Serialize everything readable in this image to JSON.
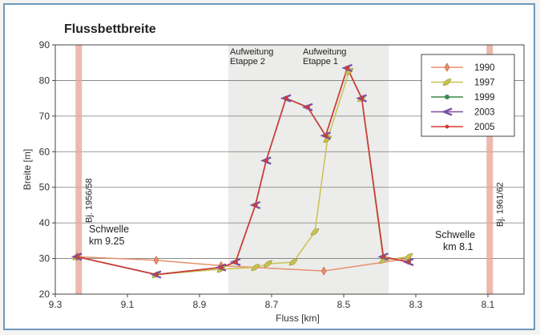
{
  "chart_data": {
    "type": "line",
    "title": "Flussbettbreite",
    "xlabel": "Fluss [km]",
    "ylabel": "Breite [m]",
    "xlim": [
      9.3,
      8.0
    ],
    "ylim": [
      20,
      90
    ],
    "xticks": [
      "9.3",
      "9.1",
      "8.9",
      "8.7",
      "8.5",
      "8.3",
      "8.1"
    ],
    "yticks": [
      "20",
      "30",
      "40",
      "50",
      "60",
      "70",
      "80",
      "90"
    ],
    "grid": "horizontal",
    "legend_position": "top-right",
    "series": [
      {
        "name": "1990",
        "color": "#e8906e",
        "marker": "diamond",
        "x": [
          9.24,
          9.02,
          8.84,
          8.555,
          8.32
        ],
        "y": [
          30.5,
          29.5,
          28.0,
          26.5,
          30.0
        ]
      },
      {
        "name": "1997",
        "color": "#c8c252",
        "marker": "leaf",
        "x": [
          9.24,
          9.02,
          8.84,
          8.745,
          8.71,
          8.64,
          8.58,
          8.545,
          8.485,
          8.45,
          8.39,
          8.32
        ],
        "y": [
          30.5,
          25.5,
          27.0,
          27.5,
          28.5,
          29.0,
          37.5,
          63.5,
          82.5,
          75.0,
          29.5,
          30.5
        ]
      },
      {
        "name": "1999",
        "color": "#3d8a4c",
        "marker": "circle",
        "x": [
          9.24,
          9.02,
          8.84,
          8.8,
          8.745,
          8.715,
          8.66,
          8.6,
          8.55,
          8.49,
          8.45,
          8.39,
          8.32
        ],
        "y": [
          30.5,
          25.5,
          27.5,
          29.0,
          45.0,
          57.5,
          75.0,
          72.5,
          64.5,
          83.5,
          75.0,
          30.5,
          29.0
        ]
      },
      {
        "name": "2003",
        "color": "#7e4fa0",
        "marker": "chevron",
        "x": [
          9.24,
          9.02,
          8.84,
          8.8,
          8.745,
          8.715,
          8.66,
          8.6,
          8.55,
          8.49,
          8.45,
          8.39,
          8.32
        ],
        "y": [
          30.5,
          25.5,
          27.5,
          29.0,
          45.0,
          57.5,
          75.0,
          72.5,
          64.5,
          83.5,
          75.0,
          30.5,
          29.0
        ]
      },
      {
        "name": "2005",
        "color": "#d23b34",
        "marker": "dot",
        "x": [
          9.24,
          9.02,
          8.84,
          8.8,
          8.745,
          8.715,
          8.66,
          8.6,
          8.55,
          8.49,
          8.45,
          8.39,
          8.32
        ],
        "y": [
          30.5,
          25.5,
          27.5,
          29.0,
          45.0,
          57.5,
          75.0,
          72.5,
          64.5,
          83.5,
          75.0,
          30.5,
          29.0
        ]
      }
    ],
    "vbands": [
      {
        "x": 9.235,
        "label": "Bj. 1956/58",
        "color": "#e8a89a"
      },
      {
        "x": 8.095,
        "label": "Bj. 1961/62",
        "color": "#e8a89a"
      }
    ],
    "photo_region": {
      "x_from": 8.82,
      "x_to": 8.375
    },
    "annotations": {
      "aufweitung2": [
        "Aufweitung",
        "Etappe 2"
      ],
      "aufweitung1": [
        "Aufweitung",
        "Etappe 1"
      ],
      "schwelle_left": [
        "Schwelle",
        "km 9.25"
      ],
      "schwelle_right": [
        "Schwelle",
        "km 8.1"
      ]
    }
  }
}
